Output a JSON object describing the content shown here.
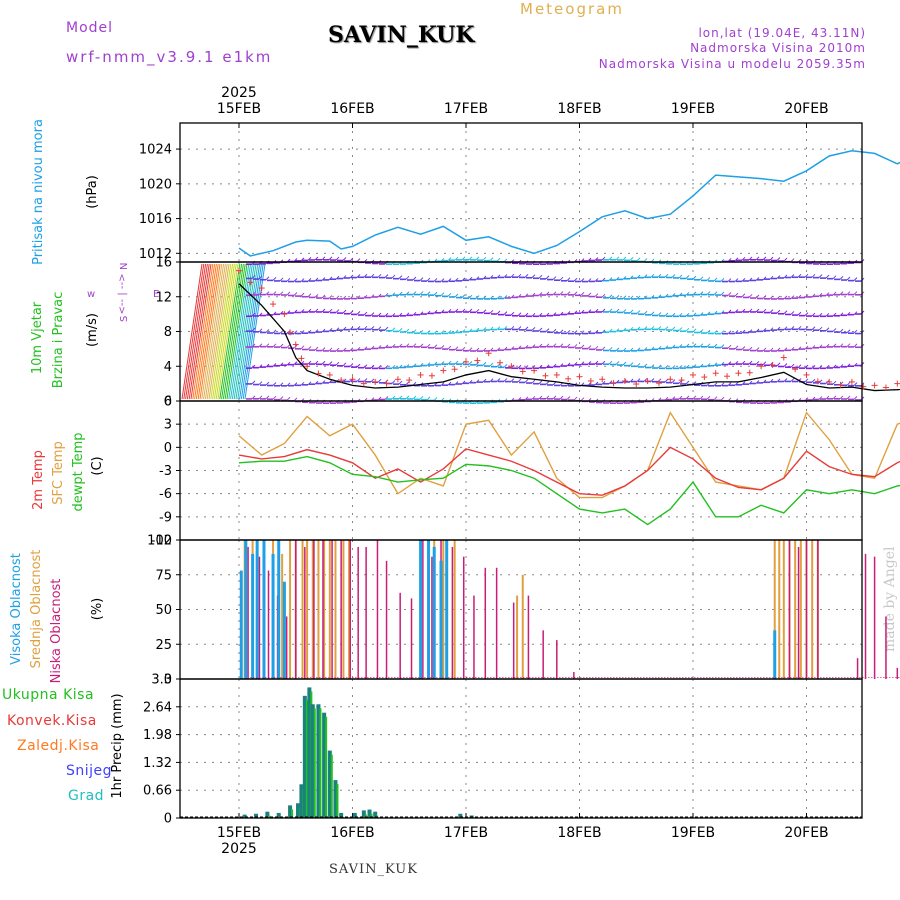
{
  "header": {
    "model_label": "Model",
    "model_value": "wrf-nmm_v3.9.1  e1km",
    "station": "SAVIN_KUK",
    "meteogram": "Meteogram",
    "lonlat": "lon,lat (19.04E, 43.11N)",
    "altitude": "Nadmorska Visina 2010m",
    "model_altitude": "Nadmorska Visina u modelu 2059.35m"
  },
  "footer": {
    "station": "SAVIN_KUK",
    "credit": "made by Angel"
  },
  "colors": {
    "pressure": "#1ea0e6",
    "wind_label": "#22c020",
    "temp2m": "#e83a3a",
    "sfc": "#e0a040",
    "dewpt": "#22c020",
    "high_cloud": "#1ea0e6",
    "mid_cloud": "#e0a040",
    "low_cloud": "#c81e78",
    "total_precip": "#22c020",
    "conv_precip": "#e83a3a",
    "freezing": "#ff7a20",
    "snow": "#4040ff",
    "graupel": "#20c0c0",
    "wind_lilac": "#a040d0"
  },
  "time_axis": {
    "year_top": "2025",
    "year_bottom": "2025",
    "dates": [
      "15FEB",
      "16FEB",
      "17FEB",
      "18FEB",
      "19FEB",
      "20FEB"
    ]
  },
  "chart_data": [
    {
      "type": "line",
      "panel": "pressure",
      "ylabel": "Pritisak na nivou mora",
      "unit": "(hPa)",
      "ylim": [
        1011,
        1027
      ],
      "yticks": [
        "1012",
        "1016",
        "1020",
        "1024"
      ],
      "grid": true,
      "x_days": [
        0.0,
        0.1,
        0.3,
        0.5,
        0.6,
        0.8,
        0.9,
        1.0,
        1.2,
        1.4,
        1.6,
        1.8,
        2.0,
        2.2,
        2.4,
        2.6,
        2.8,
        3.0,
        3.2,
        3.4,
        3.6,
        3.8,
        4.0,
        4.2,
        4.4,
        4.6,
        4.8,
        5.0,
        5.2,
        5.4,
        5.6,
        5.8,
        6.0
      ],
      "values": [
        1012.6,
        1011.7,
        1012.3,
        1013.3,
        1013.5,
        1013.4,
        1012.5,
        1012.8,
        1014.1,
        1015.0,
        1014.2,
        1015.1,
        1013.5,
        1013.9,
        1012.8,
        1012.0,
        1012.9,
        1014.5,
        1016.2,
        1016.9,
        1016.0,
        1016.5,
        1018.6,
        1021.0,
        1020.8,
        1020.6,
        1020.3,
        1021.5,
        1023.2,
        1023.8,
        1023.5,
        1022.3,
        1023.6
      ]
    },
    {
      "type": "line",
      "panel": "wind",
      "ylabel": [
        "10m Vjetar",
        "Brzina i Pravac"
      ],
      "unit": "(m/s)",
      "ylim": [
        0,
        16
      ],
      "yticks": [
        "0",
        "4",
        "8",
        "12",
        "16"
      ],
      "compass": [
        "w",
        "<-- | -->",
        "E"
      ],
      "compass_ns": [
        "N",
        "S"
      ],
      "grid": true,
      "x_days": [
        0.0,
        0.2,
        0.4,
        0.5,
        0.6,
        0.8,
        1.0,
        1.2,
        1.4,
        1.6,
        1.8,
        2.0,
        2.2,
        2.4,
        2.6,
        2.8,
        3.0,
        3.2,
        3.4,
        3.6,
        3.8,
        4.0,
        4.2,
        4.4,
        4.6,
        4.8,
        5.0,
        5.2,
        5.4,
        5.6,
        5.8,
        6.0
      ],
      "series": [
        {
          "name": "speed",
          "values": [
            13.5,
            11.0,
            8.0,
            5.0,
            3.5,
            2.5,
            1.8,
            1.5,
            1.6,
            1.9,
            2.2,
            3.0,
            3.5,
            2.8,
            2.5,
            2.2,
            1.8,
            1.6,
            1.5,
            1.5,
            1.6,
            1.9,
            2.2,
            2.2,
            2.7,
            3.3,
            1.9,
            1.5,
            1.6,
            1.2,
            1.3,
            1.5
          ]
        },
        {
          "name": "gust",
          "values": [
            15.0,
            13.0,
            10.0,
            6.5,
            4.0,
            3.0,
            2.5,
            2.2,
            2.5,
            3.0,
            3.5,
            4.5,
            5.5,
            4.0,
            3.5,
            3.0,
            2.8,
            2.5,
            2.3,
            2.3,
            2.5,
            3.0,
            3.2,
            3.2,
            4.0,
            5.0,
            3.0,
            2.2,
            2.2,
            1.8,
            2.0,
            2.5
          ]
        }
      ],
      "barb_rows": [
        0,
        2,
        4,
        6,
        8,
        10,
        12,
        14,
        16
      ]
    },
    {
      "type": "line",
      "panel": "temperature",
      "ylabel": [
        "2m Temp",
        "SFC Temp",
        "dewpt Temp"
      ],
      "unit": "(C)",
      "ylim": [
        -12,
        6
      ],
      "yticks": [
        "-12",
        "-9",
        "-6",
        "-3",
        "0",
        "3",
        "6"
      ],
      "grid": true,
      "x_days": [
        0.0,
        0.2,
        0.4,
        0.6,
        0.8,
        1.0,
        1.2,
        1.4,
        1.6,
        1.8,
        2.0,
        2.2,
        2.4,
        2.6,
        2.8,
        3.0,
        3.2,
        3.4,
        3.6,
        3.8,
        4.0,
        4.2,
        4.4,
        4.6,
        4.8,
        5.0,
        5.2,
        5.4,
        5.6,
        5.8,
        6.0
      ],
      "series": [
        {
          "name": "2m Temp",
          "values": [
            -1.0,
            -1.5,
            -1.2,
            -0.3,
            -1.0,
            -2.0,
            -4.0,
            -2.8,
            -4.5,
            -2.8,
            -0.2,
            -1.0,
            -1.8,
            -3.0,
            -4.5,
            -6.0,
            -6.2,
            -5.0,
            -3.0,
            0.0,
            -1.5,
            -4.0,
            -5.2,
            -5.5,
            -4.0,
            -0.5,
            -2.5,
            -3.5,
            -3.8,
            -2.0,
            -0.8
          ]
        },
        {
          "name": "SFC Temp",
          "values": [
            1.5,
            -1.0,
            0.5,
            4.0,
            1.5,
            3.0,
            -1.0,
            -6.0,
            -4.0,
            -5.0,
            3.0,
            3.5,
            -1.0,
            2.0,
            -4.0,
            -6.5,
            -6.5,
            -5.0,
            -3.0,
            4.5,
            0.0,
            -4.5,
            -5.0,
            -5.5,
            -4.0,
            4.5,
            1.0,
            -3.5,
            -4.0,
            3.0,
            4.0
          ]
        },
        {
          "name": "dewpt Temp",
          "values": [
            -2.0,
            -1.8,
            -1.8,
            -1.2,
            -2.0,
            -3.5,
            -3.8,
            -4.5,
            -4.2,
            -4.0,
            -2.2,
            -2.4,
            -3.0,
            -4.0,
            -6.0,
            -8.0,
            -8.5,
            -8.0,
            -10.0,
            -8.0,
            -4.5,
            -9.0,
            -9.0,
            -7.5,
            -8.5,
            -5.5,
            -6.0,
            -5.5,
            -6.0,
            -5.0,
            -4.5
          ]
        }
      ]
    },
    {
      "type": "bar",
      "panel": "clouds",
      "ylabel": [
        "Visoka Oblacnost",
        "Srednja Oblacnost",
        "Niska Oblacnost"
      ],
      "unit": "(%)",
      "ylim": [
        0,
        100
      ],
      "yticks": [
        "0",
        "25",
        "50",
        "75",
        "100"
      ],
      "grid": true,
      "series": [
        {
          "name": "Visoka Oblacnost",
          "x_days": [
            0.02,
            0.06,
            0.12,
            0.16,
            0.22,
            0.3,
            0.35,
            0.4,
            1.6,
            1.67,
            1.72,
            1.78,
            1.83,
            4.72
          ],
          "values": [
            78,
            100,
            90,
            100,
            100,
            90,
            100,
            70,
            100,
            100,
            95,
            85,
            100,
            35
          ]
        },
        {
          "name": "Srednja Oblacnost",
          "x_days": [
            0.05,
            0.12,
            0.22,
            0.3,
            0.38,
            0.45,
            0.5,
            0.56,
            0.6,
            0.65,
            0.7,
            0.75,
            0.8,
            0.85,
            0.92,
            0.97,
            1.6,
            1.67,
            1.72,
            1.8,
            1.9,
            2.45,
            2.5,
            4.72,
            4.76,
            4.8,
            4.85,
            4.9,
            4.95,
            5.0,
            5.05,
            5.1,
            6.0
          ],
          "values": [
            100,
            100,
            100,
            100,
            90,
            100,
            100,
            100,
            100,
            100,
            100,
            100,
            100,
            100,
            100,
            100,
            100,
            100,
            100,
            100,
            100,
            60,
            75,
            100,
            100,
            100,
            100,
            100,
            100,
            100,
            100,
            100,
            100
          ]
        },
        {
          "name": "Niska Oblacnost",
          "x_days": [
            0.08,
            0.18,
            0.26,
            0.34,
            0.42,
            0.5,
            0.58,
            0.66,
            0.74,
            0.82,
            0.9,
            0.98,
            1.05,
            1.12,
            1.22,
            1.3,
            1.42,
            1.52,
            1.62,
            1.7,
            1.78,
            1.88,
            1.98,
            2.07,
            2.17,
            2.27,
            2.42,
            2.55,
            2.68,
            2.8,
            2.95,
            4.85,
            4.93,
            5.0,
            5.1,
            5.45,
            5.52,
            5.6,
            5.7,
            5.8,
            5.9,
            6.0
          ],
          "values": [
            95,
            88,
            78,
            60,
            45,
            100,
            95,
            100,
            100,
            100,
            100,
            100,
            95,
            95,
            100,
            85,
            62,
            58,
            100,
            88,
            100,
            95,
            88,
            60,
            80,
            80,
            55,
            60,
            35,
            28,
            5,
            100,
            95,
            100,
            100,
            15,
            90,
            88,
            45,
            8,
            8,
            90
          ]
        }
      ]
    },
    {
      "type": "bar",
      "panel": "precipitation",
      "ylabel": "1hr Precip (mm)",
      "legend": [
        "Ukupna Kisa",
        "Konvek.Kisa",
        "Zaledj.Kisa",
        "Snijeg",
        "Grad"
      ],
      "ylim": [
        0,
        3.3
      ],
      "yticks": [
        "0",
        "0.66",
        "1.32",
        "1.98",
        "2.64",
        "3.3"
      ],
      "grid": true,
      "x_days": [
        0.05,
        0.15,
        0.25,
        0.35,
        0.45,
        0.52,
        0.55,
        0.58,
        0.62,
        0.65,
        0.7,
        0.75,
        0.8,
        0.85,
        0.9,
        1.02,
        1.1,
        1.15,
        1.2,
        1.95,
        2.05
      ],
      "values": [
        0.08,
        0.1,
        0.15,
        0.12,
        0.3,
        0.35,
        0.8,
        2.9,
        3.1,
        2.7,
        2.7,
        2.5,
        1.6,
        0.9,
        0.12,
        0.12,
        0.18,
        0.2,
        0.15,
        0.1,
        0.06
      ]
    }
  ]
}
